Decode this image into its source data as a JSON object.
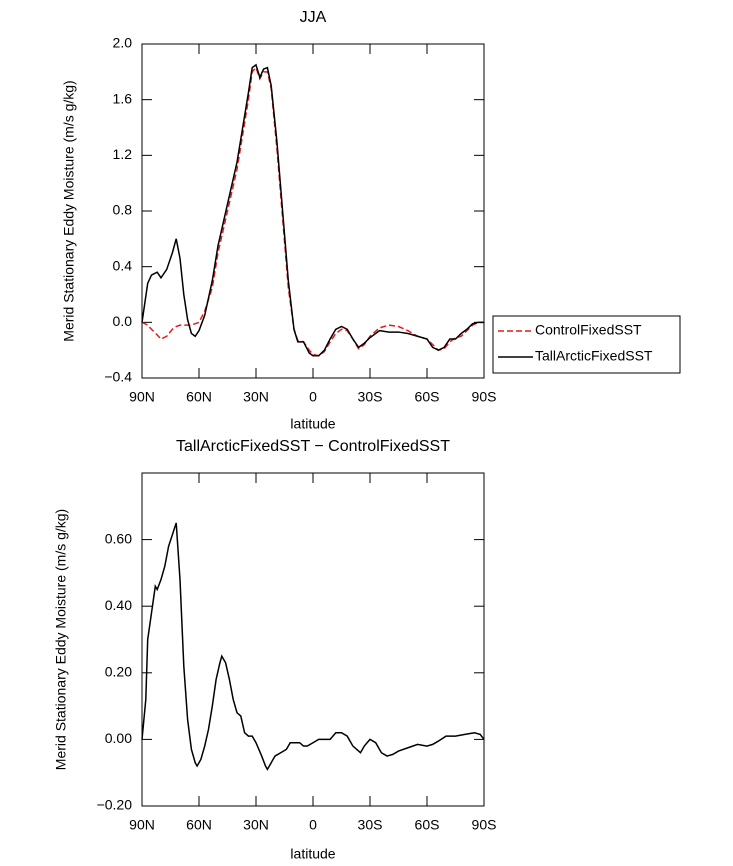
{
  "chart_data": [
    {
      "type": "line",
      "title": "JJA",
      "x_label": "latitude",
      "y_label": "Merid Stationary Eddy Moisture (m/s g/kg)",
      "x": [
        90,
        87,
        85,
        82,
        80,
        77,
        74,
        72,
        70,
        68,
        66,
        64,
        62,
        60,
        57,
        53,
        50,
        45,
        40,
        37,
        34,
        32,
        30,
        28,
        26,
        24,
        22,
        19,
        16,
        13,
        10,
        8,
        5,
        2,
        0,
        -3,
        -6,
        -9,
        -12,
        -15,
        -18,
        -21,
        -24,
        -27,
        -30,
        -35,
        -40,
        -45,
        -50,
        -55,
        -60,
        -63,
        -66,
        -69,
        -72,
        -75,
        -78,
        -81,
        -84,
        -87,
        -90
      ],
      "series": [
        {
          "name": "ControlFixedSST",
          "color": "#e41a1c",
          "dash": true,
          "values": [
            0,
            -0.02,
            -0.05,
            -0.09,
            -0.12,
            -0.1,
            -0.05,
            -0.03,
            -0.02,
            -0.02,
            -0.02,
            -0.02,
            -0.01,
            0,
            0.08,
            0.25,
            0.5,
            0.8,
            1.1,
            1.35,
            1.6,
            1.8,
            1.83,
            1.75,
            1.8,
            1.8,
            1.68,
            1.25,
            0.75,
            0.25,
            -0.05,
            -0.13,
            -0.14,
            -0.2,
            -0.23,
            -0.24,
            -0.21,
            -0.14,
            -0.08,
            -0.05,
            -0.06,
            -0.12,
            -0.19,
            -0.16,
            -0.1,
            -0.04,
            -0.02,
            -0.03,
            -0.06,
            -0.1,
            -0.12,
            -0.16,
            -0.2,
            -0.19,
            -0.14,
            -0.11,
            -0.1,
            -0.06,
            -0.02,
            0,
            0
          ]
        },
        {
          "name": "TallArcticFixedSST",
          "color": "#000000",
          "dash": false,
          "values": [
            0,
            0.28,
            0.34,
            0.36,
            0.32,
            0.38,
            0.5,
            0.6,
            0.46,
            0.2,
            0.02,
            -0.08,
            -0.1,
            -0.06,
            0.05,
            0.3,
            0.55,
            0.85,
            1.15,
            1.4,
            1.65,
            1.83,
            1.85,
            1.76,
            1.82,
            1.83,
            1.7,
            1.3,
            0.8,
            0.3,
            -0.05,
            -0.14,
            -0.14,
            -0.22,
            -0.24,
            -0.24,
            -0.2,
            -0.12,
            -0.05,
            -0.03,
            -0.05,
            -0.12,
            -0.18,
            -0.15,
            -0.11,
            -0.06,
            -0.07,
            -0.07,
            -0.08,
            -0.1,
            -0.12,
            -0.18,
            -0.2,
            -0.18,
            -0.12,
            -0.12,
            -0.08,
            -0.05,
            -0.01,
            0,
            0
          ]
        }
      ],
      "xlim": [
        90,
        -90
      ],
      "xticks": [
        {
          "value": 90,
          "label": "90N"
        },
        {
          "value": 60,
          "label": "60N"
        },
        {
          "value": 30,
          "label": "30N"
        },
        0,
        {
          "value": -30,
          "label": "30S"
        },
        {
          "value": -60,
          "label": "60S"
        },
        {
          "value": -90,
          "label": "90S"
        }
      ],
      "ylim": [
        -0.4,
        2.0
      ],
      "yticks": [
        {
          "value": -0.4,
          "label": "−0.4"
        },
        {
          "value": 0,
          "label": "0.0"
        },
        {
          "value": 0.4,
          "label": "0.4"
        },
        {
          "value": 0.8,
          "label": "0.8"
        },
        {
          "value": 1.2,
          "label": "1.2"
        },
        {
          "value": 1.6,
          "label": "1.6"
        },
        {
          "value": 2.0,
          "label": "2.0"
        }
      ],
      "legend": "right"
    },
    {
      "type": "line",
      "title": "TallArcticFixedSST − ControlFixedSST",
      "x_label": "latitude",
      "y_label": "Merid Stationary Eddy Moisture (m/s g/kg)",
      "x": [
        90,
        88,
        87,
        85,
        83,
        82,
        80,
        78,
        76,
        72,
        70,
        68,
        66,
        64,
        62,
        61,
        59,
        57,
        55,
        53,
        51,
        49,
        48,
        46,
        44,
        42,
        40,
        38,
        36,
        34,
        32,
        30,
        27,
        25,
        24,
        22,
        20,
        17,
        14,
        12,
        9,
        7,
        5,
        3,
        0,
        -3,
        -6,
        -9,
        -12,
        -15,
        -18,
        -21,
        -25,
        -27,
        -30,
        -33,
        -36,
        -39,
        -42,
        -45,
        -50,
        -55,
        -60,
        -63,
        -66,
        -70,
        -75,
        -80,
        -85,
        -88,
        -90
      ],
      "series": [
        {
          "color": "#000000",
          "dash": false,
          "values": [
            0,
            0.12,
            0.3,
            0.38,
            0.46,
            0.45,
            0.48,
            0.52,
            0.58,
            0.65,
            0.48,
            0.22,
            0.06,
            -0.03,
            -0.07,
            -0.08,
            -0.06,
            -0.02,
            0.03,
            0.1,
            0.18,
            0.23,
            0.25,
            0.23,
            0.18,
            0.12,
            0.08,
            0.07,
            0.02,
            0.01,
            0.01,
            -0.01,
            -0.05,
            -0.08,
            -0.09,
            -0.07,
            -0.05,
            -0.04,
            -0.03,
            -0.01,
            -0.01,
            -0.01,
            -0.02,
            -0.02,
            -0.01,
            0,
            0,
            0,
            0.02,
            0.02,
            0.01,
            -0.02,
            -0.04,
            -0.02,
            0,
            -0.01,
            -0.04,
            -0.05,
            -0.045,
            -0.035,
            -0.025,
            -0.015,
            -0.02,
            -0.015,
            -0.005,
            0.01,
            0.01,
            0.015,
            0.02,
            0.015,
            0
          ]
        }
      ],
      "xlim": [
        90,
        -90
      ],
      "xticks": [
        {
          "value": 90,
          "label": "90N"
        },
        {
          "value": 60,
          "label": "60N"
        },
        {
          "value": 30,
          "label": "30N"
        },
        0,
        {
          "value": -30,
          "label": "30S"
        },
        {
          "value": -60,
          "label": "60S"
        },
        {
          "value": -90,
          "label": "90S"
        }
      ],
      "ylim": [
        -0.2,
        0.8
      ],
      "yticks": [
        {
          "value": -0.2,
          "label": "−0.20"
        },
        {
          "value": 0,
          "label": "0.00"
        },
        {
          "value": 0.2,
          "label": "0.20"
        },
        {
          "value": 0.4,
          "label": "0.40"
        },
        {
          "value": 0.6,
          "label": "0.60"
        }
      ]
    }
  ]
}
